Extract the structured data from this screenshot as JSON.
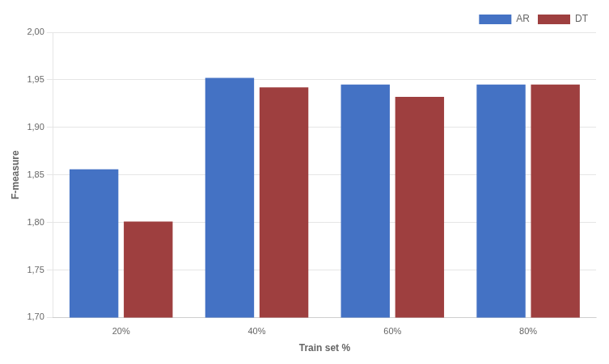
{
  "chart_data": {
    "type": "bar",
    "xlabel": "Train set %",
    "ylabel": "F-measure",
    "categories": [
      "20%",
      "40%",
      "60%",
      "80%"
    ],
    "series": [
      {
        "name": "AR",
        "color": "#4472C4",
        "values": [
          1.856,
          1.952,
          1.945,
          1.945
        ]
      },
      {
        "name": "DT",
        "color": "#9E3F3F",
        "values": [
          1.801,
          1.942,
          1.932,
          1.945
        ]
      }
    ],
    "ylim": [
      1.7,
      2.0
    ],
    "yticks": [
      {
        "value": 1.7,
        "label": "1,70"
      },
      {
        "value": 1.75,
        "label": "1,75"
      },
      {
        "value": 1.8,
        "label": "1,80"
      },
      {
        "value": 1.85,
        "label": "1,85"
      },
      {
        "value": 1.9,
        "label": "1,90"
      },
      {
        "value": 1.95,
        "label": "1,95"
      },
      {
        "value": 2.0,
        "label": "2,00"
      }
    ],
    "grid": true,
    "legend": "upper right"
  }
}
